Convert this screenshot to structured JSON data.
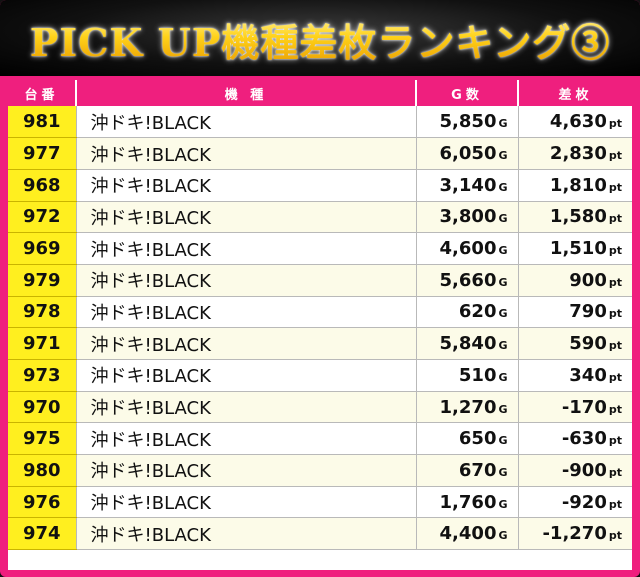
{
  "title": "PICK UP機種差枚ランキング③",
  "header": {
    "col_no": "台番",
    "col_model": "機 種",
    "col_games": "G数",
    "col_diff": "差枚"
  },
  "units": {
    "games": "G",
    "diff": "pt"
  },
  "colors": {
    "frame": "#ef1f7e",
    "number_cell": "#ffef1f",
    "title_gold": "#ffd21a"
  },
  "rows": [
    {
      "no": "981",
      "model": "沖ドキ!BLACK",
      "games": "5,850",
      "diff": "4,630"
    },
    {
      "no": "977",
      "model": "沖ドキ!BLACK",
      "games": "6,050",
      "diff": "2,830"
    },
    {
      "no": "968",
      "model": "沖ドキ!BLACK",
      "games": "3,140",
      "diff": "1,810"
    },
    {
      "no": "972",
      "model": "沖ドキ!BLACK",
      "games": "3,800",
      "diff": "1,580"
    },
    {
      "no": "969",
      "model": "沖ドキ!BLACK",
      "games": "4,600",
      "diff": "1,510"
    },
    {
      "no": "979",
      "model": "沖ドキ!BLACK",
      "games": "5,660",
      "diff": "900"
    },
    {
      "no": "978",
      "model": "沖ドキ!BLACK",
      "games": "620",
      "diff": "790"
    },
    {
      "no": "971",
      "model": "沖ドキ!BLACK",
      "games": "5,840",
      "diff": "590"
    },
    {
      "no": "973",
      "model": "沖ドキ!BLACK",
      "games": "510",
      "diff": "340"
    },
    {
      "no": "970",
      "model": "沖ドキ!BLACK",
      "games": "1,270",
      "diff": "-170"
    },
    {
      "no": "975",
      "model": "沖ドキ!BLACK",
      "games": "650",
      "diff": "-630"
    },
    {
      "no": "980",
      "model": "沖ドキ!BLACK",
      "games": "670",
      "diff": "-900"
    },
    {
      "no": "976",
      "model": "沖ドキ!BLACK",
      "games": "1,760",
      "diff": "-920"
    },
    {
      "no": "974",
      "model": "沖ドキ!BLACK",
      "games": "4,400",
      "diff": "-1,270"
    }
  ]
}
